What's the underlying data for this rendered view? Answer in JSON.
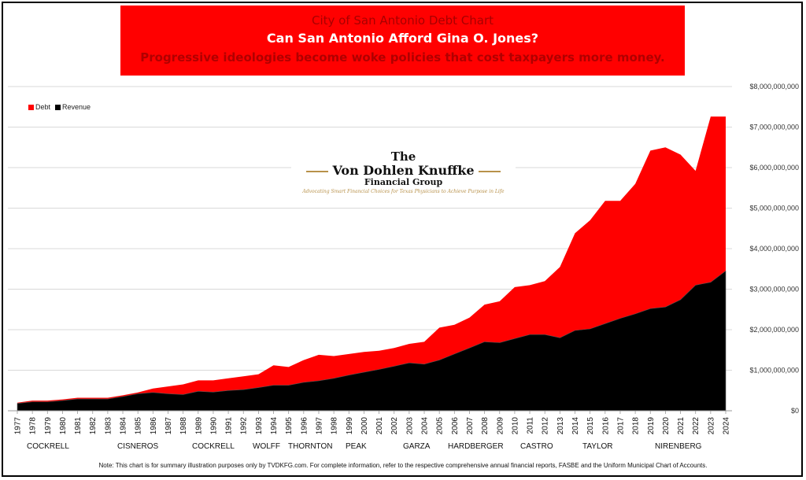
{
  "banner": {
    "line1": "City of San Antonio Debt Chart",
    "line2": "Can San Antonio Afford Gina O. Jones?",
    "line3": "Progressive ideologies become woke policies that cost taxpayers more money."
  },
  "logo": {
    "line1": "The",
    "line2": "Von Dohlen Knuffke",
    "line3": "Financial Group",
    "tagline": "Advocating Smart Financial Choices for Texas Physicians to Achieve Purpose in Life"
  },
  "colors": {
    "debt": "#ff0000",
    "revenue": "#000000",
    "banner": "#ff0000"
  },
  "mayors": [
    "COCKRELL",
    "CISNEROS",
    "COCKRELL",
    "WOLFF",
    "THORNTON",
    "PEAK",
    "GARZA",
    "HARDBERGER",
    "CASTRO",
    "TAYLOR",
    "NIRENBERG"
  ],
  "note": "Note: This chart is for summary illustration purposes only by TVDKFG.com. For complete information, refer to the respective comprehensive annual financial reports, FASBE and the Uniform Municipal Chart of Accounts.",
  "chart_data": {
    "type": "area",
    "title": "City of San Antonio Debt Chart",
    "legend": "top-left",
    "grid": true,
    "y_axis_side": "right",
    "ylim": [
      0,
      8000000000
    ],
    "y_ticks": [
      "$0",
      "$1,000,000,000",
      "$2,000,000,000",
      "$3,000,000,000",
      "$4,000,000,000",
      "$5,000,000,000",
      "$6,000,000,000",
      "$7,000,000,000",
      "$8,000,000,000"
    ],
    "x": [
      1977,
      1978,
      1979,
      1980,
      1981,
      1982,
      1983,
      1984,
      1985,
      1986,
      1987,
      1988,
      1989,
      1990,
      1991,
      1992,
      1993,
      1994,
      1995,
      1996,
      1997,
      1998,
      1999,
      2000,
      2001,
      2002,
      2003,
      2004,
      2005,
      2006,
      2007,
      2008,
      2009,
      2010,
      2011,
      2012,
      2013,
      2014,
      2015,
      2016,
      2017,
      2018,
      2019,
      2020,
      2021,
      2022,
      2023,
      2024
    ],
    "series": [
      {
        "name": "Debt",
        "values": [
          200000000,
          250000000,
          250000000,
          280000000,
          320000000,
          320000000,
          320000000,
          380000000,
          450000000,
          550000000,
          600000000,
          650000000,
          750000000,
          750000000,
          800000000,
          850000000,
          900000000,
          1120000000,
          1080000000,
          1250000000,
          1380000000,
          1350000000,
          1400000000,
          1450000000,
          1480000000,
          1550000000,
          1650000000,
          1700000000,
          2050000000,
          2120000000,
          2300000000,
          2620000000,
          2700000000,
          3050000000,
          3100000000,
          3200000000,
          3550000000,
          4380000000,
          4700000000,
          5180000000,
          5180000000,
          5600000000,
          6420000000,
          6500000000,
          6320000000,
          5920000000,
          7260000000,
          7260000000
        ]
      },
      {
        "name": "Revenue",
        "values": [
          180000000,
          220000000,
          220000000,
          250000000,
          290000000,
          290000000,
          290000000,
          350000000,
          420000000,
          450000000,
          420000000,
          400000000,
          480000000,
          460000000,
          500000000,
          520000000,
          570000000,
          630000000,
          630000000,
          700000000,
          740000000,
          800000000,
          880000000,
          950000000,
          1020000000,
          1100000000,
          1180000000,
          1150000000,
          1250000000,
          1400000000,
          1550000000,
          1700000000,
          1680000000,
          1780000000,
          1880000000,
          1880000000,
          1800000000,
          1980000000,
          2020000000,
          2150000000,
          2280000000,
          2390000000,
          2520000000,
          2560000000,
          2740000000,
          3100000000,
          3170000000,
          3450000000
        ]
      }
    ]
  }
}
